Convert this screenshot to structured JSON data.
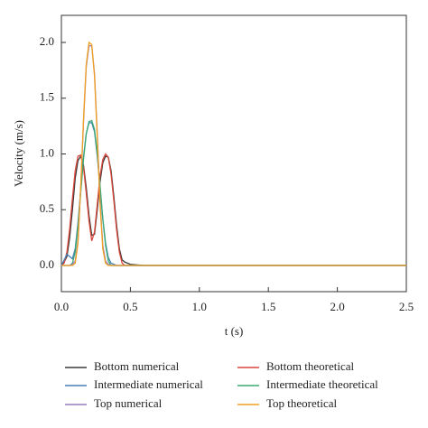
{
  "chart_data": {
    "type": "line",
    "x_label": "t (s)",
    "y_label": "Velocity (m/s)",
    "x": [
      0,
      0.02,
      0.04,
      0.06,
      0.08,
      0.1,
      0.12,
      0.14,
      0.16,
      0.18,
      0.2,
      0.22,
      0.24,
      0.26,
      0.28,
      0.3,
      0.32,
      0.34,
      0.36,
      0.38,
      0.4,
      0.42,
      0.44,
      0.46,
      0.48,
      0.5,
      0.6,
      1.0,
      1.5,
      2.0,
      2.5
    ],
    "series": [
      {
        "name": "Bottom numerical",
        "color": "#3a3a3a",
        "values": [
          0,
          0.03,
          0.08,
          0.25,
          0.5,
          0.78,
          0.94,
          0.98,
          0.9,
          0.7,
          0.45,
          0.27,
          0.28,
          0.5,
          0.75,
          0.92,
          0.98,
          0.97,
          0.85,
          0.62,
          0.36,
          0.15,
          0.05,
          0.03,
          0.02,
          0.01,
          0,
          0,
          0,
          0,
          0
        ]
      },
      {
        "name": "Bottom theoretical",
        "color": "#d9473b",
        "values": [
          0,
          0.02,
          0.12,
          0.33,
          0.6,
          0.85,
          0.98,
          0.99,
          0.88,
          0.65,
          0.4,
          0.22,
          0.3,
          0.55,
          0.8,
          0.95,
          1.0,
          0.97,
          0.82,
          0.58,
          0.32,
          0.12,
          0.02,
          0,
          0,
          0,
          0,
          0,
          0,
          0,
          0
        ]
      },
      {
        "name": "Intermediate numerical",
        "color": "#4a7fb5",
        "values": [
          0,
          0.05,
          0.1,
          0.08,
          0.06,
          0.15,
          0.38,
          0.68,
          0.97,
          1.18,
          1.28,
          1.28,
          1.2,
          0.98,
          0.7,
          0.42,
          0.2,
          0.07,
          0.02,
          0.01,
          0,
          0,
          0,
          0,
          0,
          0,
          0,
          0,
          0,
          0,
          0
        ]
      },
      {
        "name": "Intermediate theoretical",
        "color": "#3aaa72",
        "values": [
          0,
          0,
          0,
          0,
          0.02,
          0.12,
          0.35,
          0.65,
          0.95,
          1.18,
          1.29,
          1.3,
          1.22,
          1.0,
          0.72,
          0.42,
          0.18,
          0.04,
          0,
          0,
          0,
          0,
          0,
          0,
          0,
          0,
          0,
          0,
          0,
          0,
          0
        ]
      },
      {
        "name": "Top numerical",
        "color": "#9b7fc0",
        "values": [
          0,
          0,
          0,
          0,
          0.01,
          0.04,
          0.22,
          0.7,
          1.28,
          1.78,
          1.97,
          1.97,
          1.72,
          1.18,
          0.58,
          0.18,
          0.04,
          0.01,
          0,
          0,
          0,
          0,
          0,
          0,
          0,
          0,
          0,
          0,
          0,
          0,
          0
        ]
      },
      {
        "name": "Top theoretical",
        "color": "#f0a020",
        "values": [
          0,
          0,
          0,
          0,
          0,
          0.02,
          0.2,
          0.7,
          1.3,
          1.8,
          2.0,
          1.98,
          1.7,
          1.15,
          0.55,
          0.15,
          0.02,
          0,
          0,
          0,
          0,
          0,
          0,
          0,
          0,
          0,
          0,
          0,
          0,
          0,
          0
        ]
      }
    ],
    "xlim": [
      0,
      2.5
    ],
    "ylim": [
      -0.235,
      2.243
    ],
    "xticks": [
      {
        "value": 0,
        "label": "0.0"
      },
      0.5,
      {
        "value": 1,
        "label": "1.0"
      },
      1.5,
      {
        "value": 2,
        "label": "2.0"
      },
      2.5
    ],
    "yticks": [
      {
        "value": 0,
        "label": "0.0"
      },
      0.5,
      {
        "value": 1,
        "label": "1.0"
      },
      1.5,
      {
        "value": 2,
        "label": "2.0"
      }
    ],
    "grid": false,
    "legend": "bottom"
  }
}
